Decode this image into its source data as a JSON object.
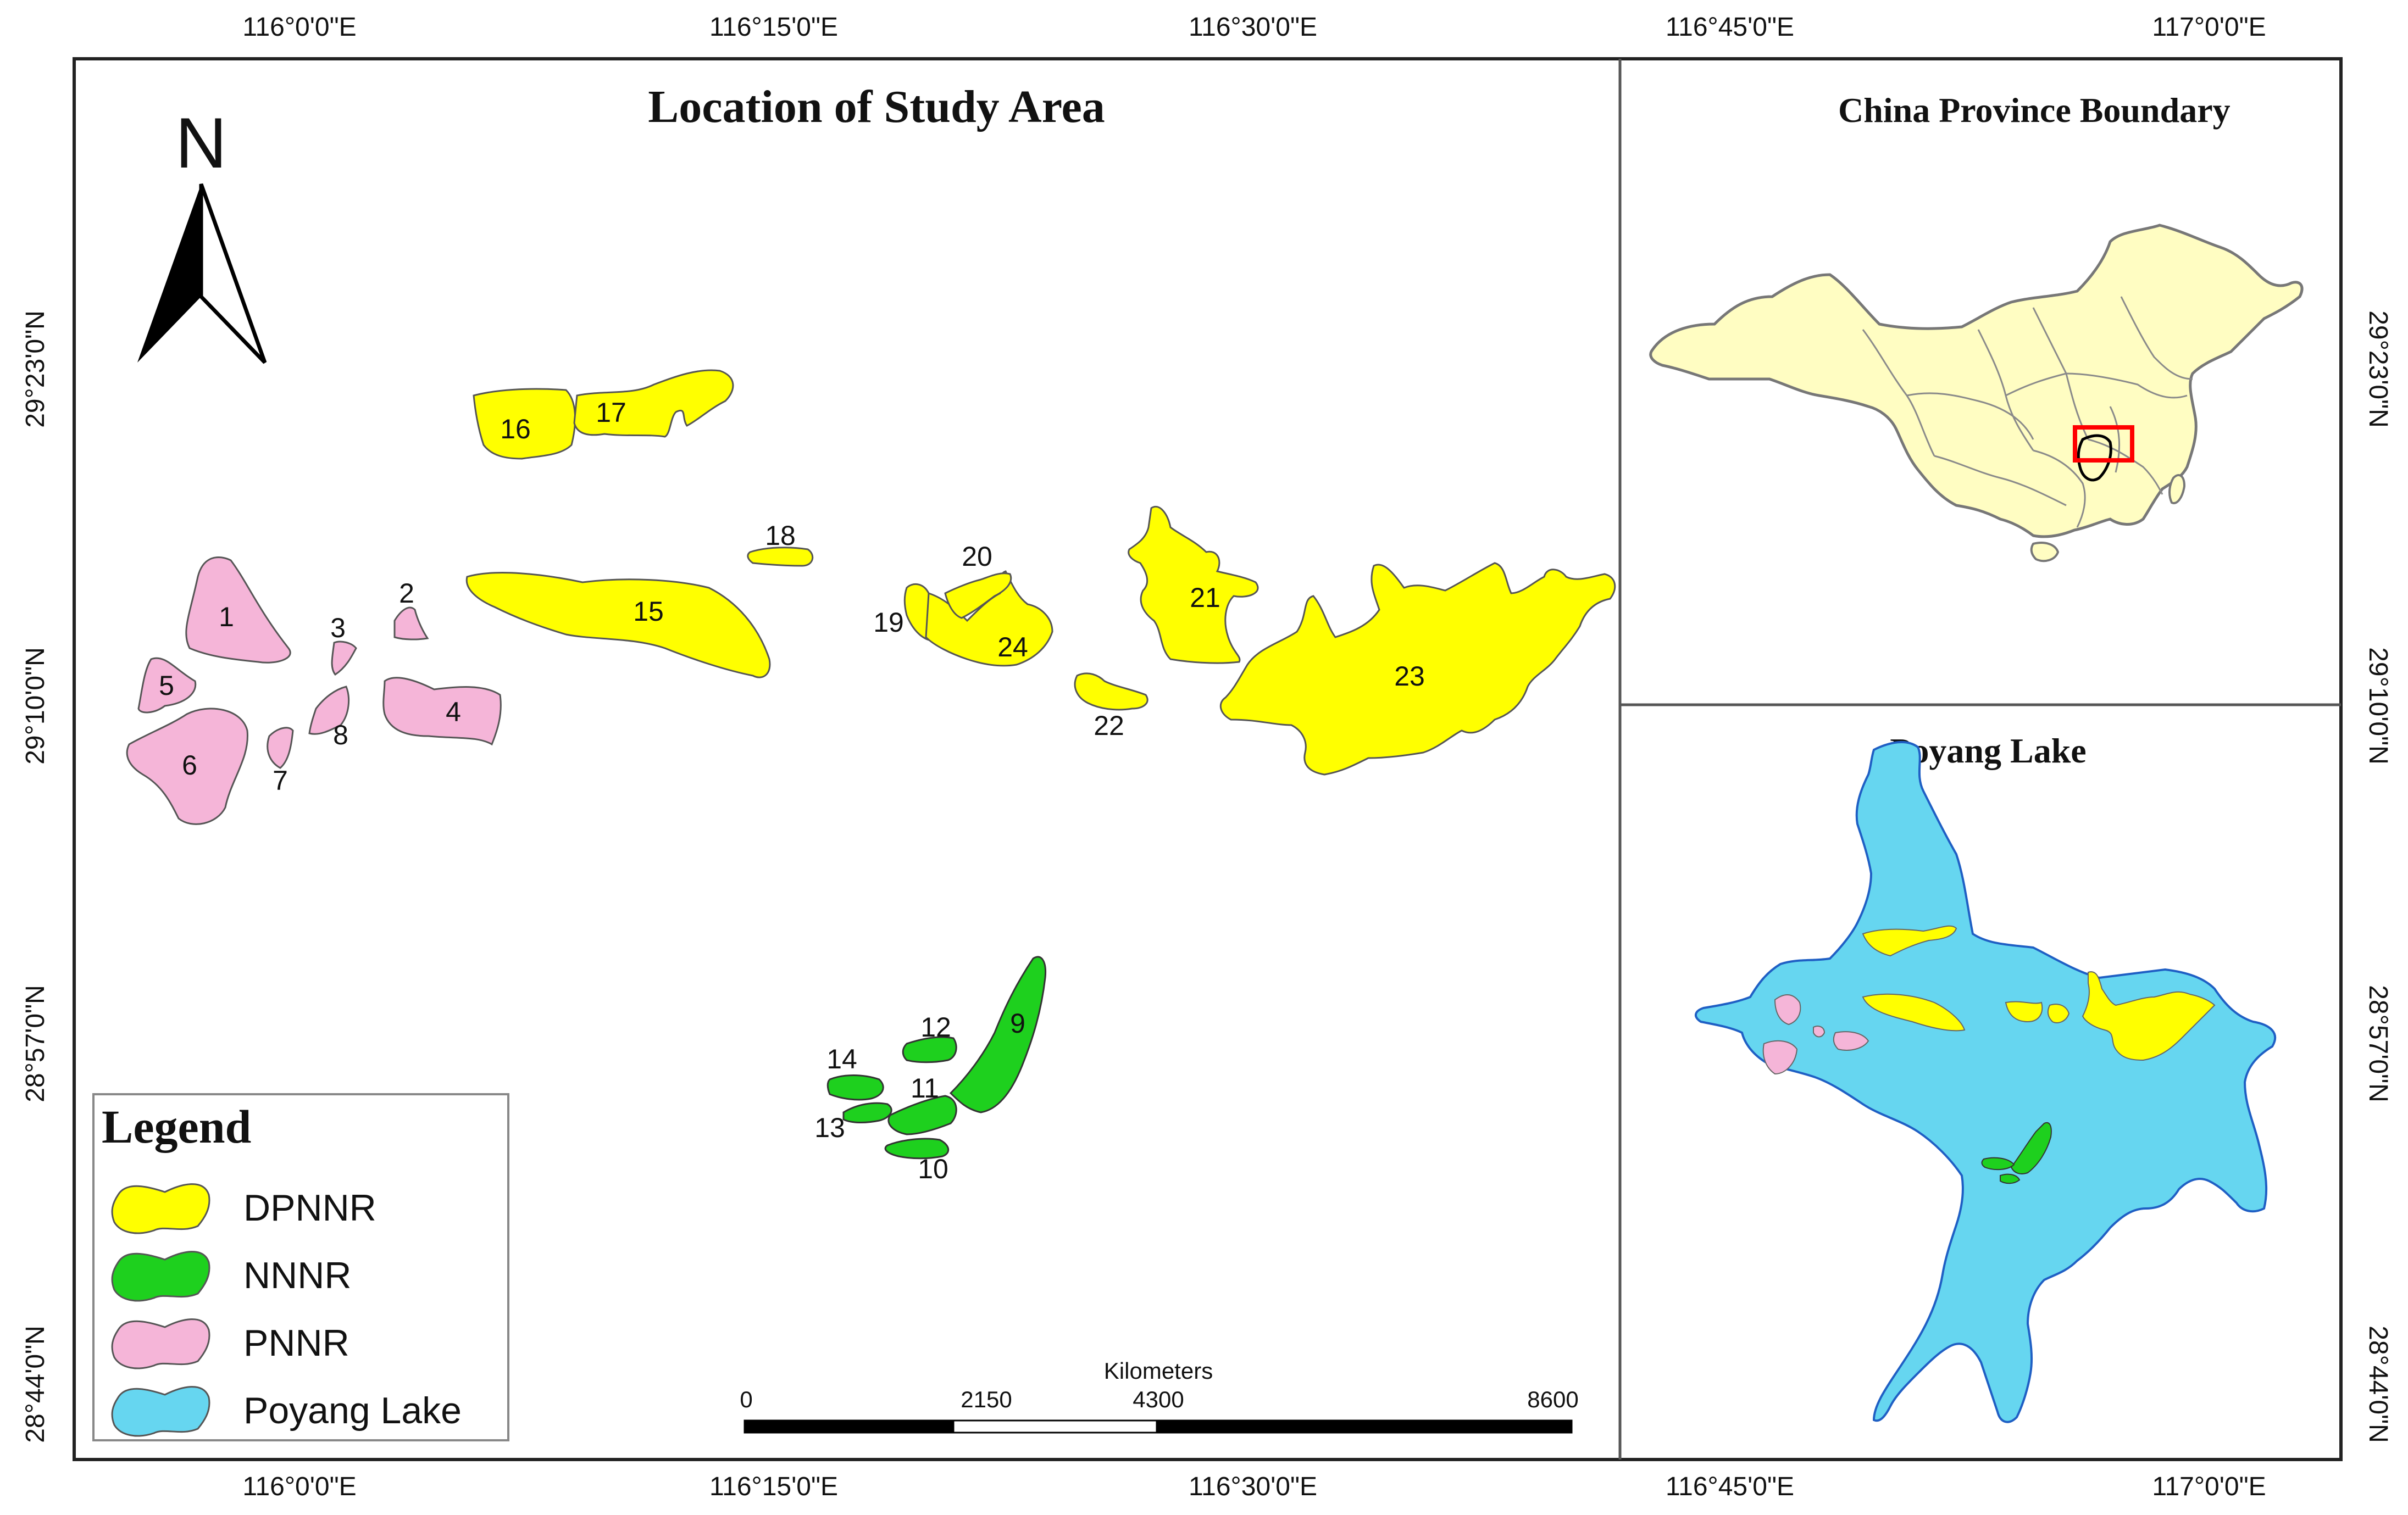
{
  "map": {
    "title": "Location of Study Area",
    "north_label": "N",
    "top_axis": [
      "116°0'0\"E",
      "116°15'0\"E",
      "116°30'0\"E",
      "116°45'0\"E",
      "117°0'0\"E"
    ],
    "bottom_axis": [
      "116°0'0\"E",
      "116°15'0\"E",
      "116°30'0\"E",
      "116°45'0\"E",
      "117°0'0\"E"
    ],
    "left_axis": [
      "29°23'0\"N",
      "29°10'0\"N",
      "28°57'0\"N",
      "28°44'0\"N"
    ],
    "right_axis": [
      "29°23'0\"N",
      "29°10'0\"N",
      "28°57'0\"N",
      "28°44'0\"N"
    ],
    "colors": {
      "dpnnr": "#ffff00",
      "nnnr": "#1ed01e",
      "pnnr": "#f5b5d8",
      "lake": "#66d6f0",
      "china": "#fffdc2",
      "highlight_box": "#ff0000"
    },
    "regions": [
      {
        "id": "1",
        "class": "PNNR"
      },
      {
        "id": "2",
        "class": "PNNR"
      },
      {
        "id": "3",
        "class": "PNNR"
      },
      {
        "id": "4",
        "class": "PNNR"
      },
      {
        "id": "5",
        "class": "PNNR"
      },
      {
        "id": "6",
        "class": "PNNR"
      },
      {
        "id": "7",
        "class": "PNNR"
      },
      {
        "id": "8",
        "class": "PNNR"
      },
      {
        "id": "9",
        "class": "NNNR"
      },
      {
        "id": "10",
        "class": "NNNR"
      },
      {
        "id": "11",
        "class": "NNNR"
      },
      {
        "id": "12",
        "class": "NNNR"
      },
      {
        "id": "13",
        "class": "NNNR"
      },
      {
        "id": "14",
        "class": "NNNR"
      },
      {
        "id": "15",
        "class": "DPNNR"
      },
      {
        "id": "16",
        "class": "DPNNR"
      },
      {
        "id": "17",
        "class": "DPNNR"
      },
      {
        "id": "18",
        "class": "DPNNR"
      },
      {
        "id": "19",
        "class": "DPNNR"
      },
      {
        "id": "20",
        "class": "DPNNR"
      },
      {
        "id": "21",
        "class": "DPNNR"
      },
      {
        "id": "22",
        "class": "DPNNR"
      },
      {
        "id": "23",
        "class": "DPNNR"
      },
      {
        "id": "24",
        "class": "DPNNR"
      }
    ]
  },
  "legend": {
    "title": "Legend",
    "items": [
      {
        "label": "DPNNR",
        "color": "#ffff00"
      },
      {
        "label": "NNNR",
        "color": "#1ed01e"
      },
      {
        "label": "PNNR",
        "color": "#f5b5d8"
      },
      {
        "label": "Poyang Lake",
        "color": "#66d6f0"
      }
    ]
  },
  "scale_bar": {
    "unit": "Kilometers",
    "ticks": [
      "0",
      "2150",
      "4300",
      "8600"
    ]
  },
  "insets": {
    "china": {
      "title": "China Province Boundary"
    },
    "poyang": {
      "title": "Poyang Lake"
    }
  }
}
